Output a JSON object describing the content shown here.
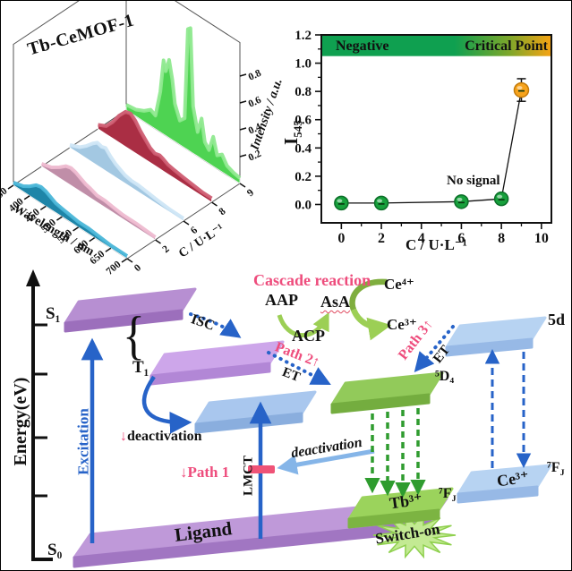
{
  "chart_data": [
    {
      "type": "area",
      "variant": "3d-waterfall",
      "title": "Tb-CeMOF-1",
      "xlabel": "Wavelength / nm",
      "ylabel": "C / U·L⁻¹",
      "zlabel": "Intensity / a.u.",
      "x_ticks": [
        350,
        400,
        450,
        500,
        550,
        600,
        650,
        700
      ],
      "z_ticks": [
        0.2,
        0.4,
        0.6,
        0.8
      ],
      "xlim": [
        350,
        700
      ],
      "zlim": [
        0,
        1.0
      ],
      "series": [
        {
          "c": "0",
          "color": "#1e85a8",
          "top": "#4ab6d8",
          "profile": [
            [
              350,
              0.02
            ],
            [
              380,
              0.04
            ],
            [
              400,
              0.07
            ],
            [
              420,
              0.11
            ],
            [
              435,
              0.12
            ],
            [
              450,
              0.11
            ],
            [
              465,
              0.09
            ],
            [
              480,
              0.07
            ],
            [
              500,
              0.06
            ],
            [
              525,
              0.05
            ],
            [
              550,
              0.04
            ],
            [
              580,
              0.04
            ],
            [
              615,
              0.03
            ],
            [
              650,
              0.02
            ],
            [
              700,
              0.02
            ]
          ]
        },
        {
          "c": "2",
          "color": "#c08ea8",
          "top": "#eebbd0",
          "profile": [
            [
              350,
              0.02
            ],
            [
              380,
              0.04
            ],
            [
              405,
              0.08
            ],
            [
              425,
              0.12
            ],
            [
              440,
              0.13
            ],
            [
              455,
              0.12
            ],
            [
              470,
              0.1
            ],
            [
              485,
              0.08
            ],
            [
              500,
              0.07
            ],
            [
              520,
              0.05
            ],
            [
              545,
              0.05
            ],
            [
              570,
              0.04
            ],
            [
              600,
              0.03
            ],
            [
              640,
              0.03
            ],
            [
              700,
              0.02
            ]
          ]
        },
        {
          "c": "6",
          "color": "#a3c8e2",
          "top": "#cfe6f5",
          "profile": [
            [
              350,
              0.02
            ],
            [
              380,
              0.05
            ],
            [
              400,
              0.09
            ],
            [
              420,
              0.14
            ],
            [
              435,
              0.17
            ],
            [
              448,
              0.16
            ],
            [
              460,
              0.17
            ],
            [
              475,
              0.13
            ],
            [
              490,
              0.1
            ],
            [
              505,
              0.08
            ],
            [
              520,
              0.06
            ],
            [
              540,
              0.05
            ],
            [
              560,
              0.05
            ],
            [
              590,
              0.04
            ],
            [
              620,
              0.03
            ],
            [
              660,
              0.02
            ],
            [
              700,
              0.02
            ]
          ]
        },
        {
          "c": "8",
          "color": "#aa2e44",
          "top": "#cf5d72",
          "profile": [
            [
              350,
              0.03
            ],
            [
              375,
              0.06
            ],
            [
              395,
              0.12
            ],
            [
              415,
              0.2
            ],
            [
              435,
              0.26
            ],
            [
              450,
              0.27
            ],
            [
              465,
              0.24
            ],
            [
              480,
              0.19
            ],
            [
              495,
              0.15
            ],
            [
              510,
              0.11
            ],
            [
              525,
              0.09
            ],
            [
              540,
              0.1
            ],
            [
              550,
              0.09
            ],
            [
              565,
              0.07
            ],
            [
              585,
              0.06
            ],
            [
              610,
              0.05
            ],
            [
              640,
              0.04
            ],
            [
              670,
              0.03
            ],
            [
              700,
              0.03
            ]
          ]
        },
        {
          "c": "9",
          "color": "#4ed352",
          "top": "#8fe98f",
          "profile": [
            [
              350,
              0.04
            ],
            [
              380,
              0.05
            ],
            [
              405,
              0.08
            ],
            [
              425,
              0.12
            ],
            [
              440,
              0.1
            ],
            [
              455,
              0.3
            ],
            [
              465,
              0.55
            ],
            [
              472,
              0.48
            ],
            [
              482,
              0.58
            ],
            [
              492,
              0.45
            ],
            [
              500,
              0.28
            ],
            [
              515,
              0.18
            ],
            [
              530,
              0.22
            ],
            [
              540,
              0.9
            ],
            [
              548,
              0.92
            ],
            [
              556,
              0.35
            ],
            [
              570,
              0.18
            ],
            [
              582,
              0.3
            ],
            [
              592,
              0.14
            ],
            [
              605,
              0.1
            ],
            [
              618,
              0.22
            ],
            [
              630,
              0.1
            ],
            [
              645,
              0.13
            ],
            [
              660,
              0.07
            ],
            [
              680,
              0.05
            ],
            [
              700,
              0.04
            ]
          ]
        }
      ]
    },
    {
      "type": "scatter",
      "xlabel": "C / U·L⁻¹",
      "ylabel_main": "I",
      "ylabel_sub": "545",
      "x_ticks": [
        0,
        2,
        4,
        6,
        8,
        10
      ],
      "y_ticks": [
        "0.0",
        "0.2",
        "0.4",
        "0.6",
        "0.8",
        "1.0",
        "1.2"
      ],
      "xlim": [
        -1.0,
        10.5
      ],
      "ylim": [
        -0.13,
        1.2
      ],
      "grid": false,
      "band": {
        "from": 1.05,
        "to": 1.2,
        "label_left": "Negative",
        "label_right": "Critical Point",
        "color_green": "#0fa050",
        "color_orange": "#f7a313"
      },
      "points": [
        {
          "x": 0,
          "y": 0.01
        },
        {
          "x": 2,
          "y": 0.01
        },
        {
          "x": 6,
          "y": 0.02
        },
        {
          "x": 8,
          "y": 0.04
        }
      ],
      "point_color": "#17a03c",
      "special_point": {
        "x": 9,
        "y": 0.81,
        "err": 0.08,
        "color": "#f7a31c"
      },
      "annotation": "No signal",
      "line_color": "#111111"
    }
  ],
  "diagram": {
    "energy_label": "Energy(eV)",
    "s1": "S₁",
    "s0": "S₀",
    "t1": "T₁",
    "brace": "{",
    "isc": "ISC",
    "excitation": "Excitation",
    "deact_arrow": "↓",
    "deact1": "deactivation",
    "path1": "↓Path 1",
    "lmct": "LMCT",
    "deact2": "deactivation",
    "cascade": "Cascade reaction",
    "aap": "AAP",
    "asa": "AsA",
    "acp": "ACP",
    "ce4": "Ce⁴⁺",
    "ce3_product": "Ce³⁺",
    "path2": "Path 2↑",
    "et1": "ET",
    "path3": "Path 3↑",
    "et2": "ET",
    "d5_4": "⁵D₄",
    "level_5d": "5d",
    "fj_main": "⁷F",
    "fj_sub": "J",
    "tb": "Tb³⁺",
    "ce3_level": "Ce³⁺",
    "ligand": "Ligand",
    "switch_on": "Switch-on",
    "colors": {
      "arrow_blue": "#2763c8",
      "arrow_light_blue": "#85b5e8",
      "arrow_green_dashed": "#2f9c2f",
      "cascade_green_dark": "#7fae3e",
      "cascade_green_light": "#9ccf55",
      "pink_text": "#ee4d7d",
      "block_bar": "#ef5377"
    }
  }
}
